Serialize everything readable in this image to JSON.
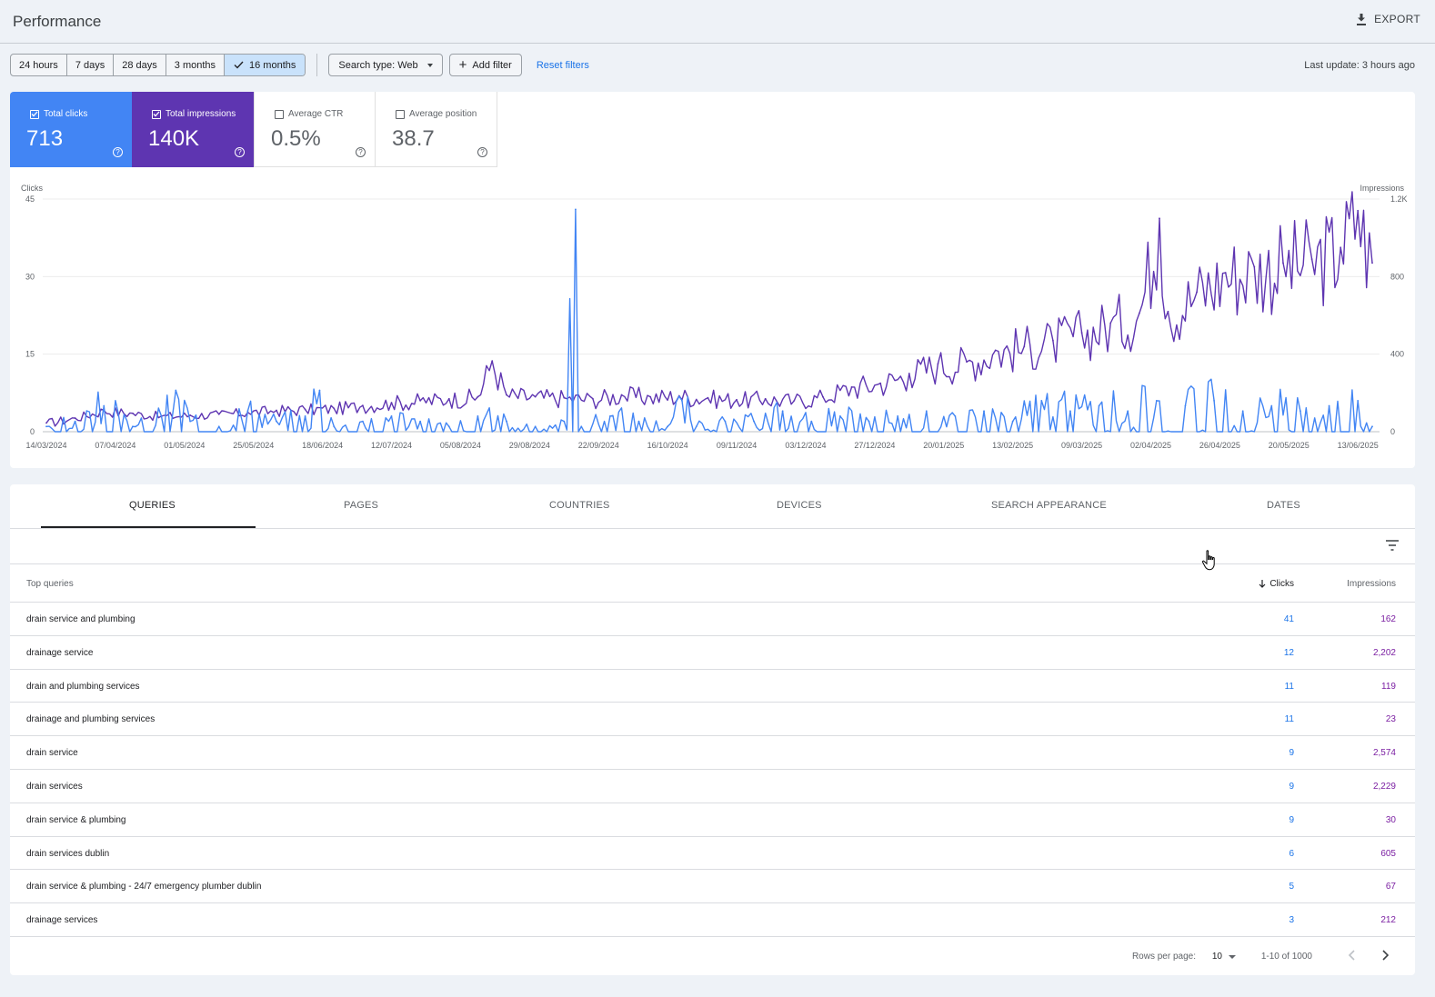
{
  "header": {
    "title": "Performance",
    "export_label": "EXPORT"
  },
  "toolbar": {
    "date_ranges": [
      "24 hours",
      "7 days",
      "28 days",
      "3 months",
      "16 months"
    ],
    "active_range": "16 months",
    "search_type": "Search type: Web",
    "add_filter": "Add filter",
    "reset_filters": "Reset filters",
    "last_update": "Last update: 3 hours ago"
  },
  "metrics": {
    "clicks": {
      "label": "Total clicks",
      "value": "713",
      "checked": true,
      "color": "#4285f4"
    },
    "impressions": {
      "label": "Total impressions",
      "value": "140K",
      "checked": true,
      "color": "#5e35b1"
    },
    "ctr": {
      "label": "Average CTR",
      "value": "0.5%",
      "checked": false
    },
    "position": {
      "label": "Average position",
      "value": "38.7",
      "checked": false
    }
  },
  "chart_data": {
    "type": "line",
    "y_left_label": "Clicks",
    "y_right_label": "Impressions",
    "y_left_ticks": [
      "45",
      "30",
      "15",
      "0"
    ],
    "y_right_ticks": [
      "1.2K",
      "800",
      "400",
      "0"
    ],
    "y_left_range": [
      0,
      45
    ],
    "y_right_range": [
      0,
      1200
    ],
    "x_ticks": [
      "14/03/2024",
      "07/04/2024",
      "01/05/2024",
      "25/05/2024",
      "18/06/2024",
      "12/07/2024",
      "05/08/2024",
      "29/08/2024",
      "22/09/2024",
      "16/10/2024",
      "09/11/2024",
      "03/12/2024",
      "27/12/2024",
      "20/01/2025",
      "13/02/2025",
      "09/03/2025",
      "02/04/2025",
      "26/04/2025",
      "20/05/2025",
      "13/06/2025"
    ],
    "x_range": [
      "14/03/2024",
      "18/06/2025"
    ],
    "grid": true,
    "series": [
      {
        "name": "Clicks",
        "axis": "left",
        "color": "#4285f4",
        "points": [
          [
            "14/03/2024",
            1
          ],
          [
            "24/03/2024",
            2
          ],
          [
            "03/04/2024",
            5
          ],
          [
            "13/04/2024",
            1
          ],
          [
            "23/04/2024",
            3
          ],
          [
            "28/04/2024",
            8
          ],
          [
            "03/05/2024",
            2
          ],
          [
            "13/05/2024",
            1
          ],
          [
            "23/05/2024",
            4
          ],
          [
            "02/06/2024",
            2
          ],
          [
            "12/06/2024",
            3
          ],
          [
            "17/06/2024",
            8
          ],
          [
            "22/06/2024",
            1
          ],
          [
            "02/07/2024",
            2
          ],
          [
            "12/07/2024",
            3
          ],
          [
            "22/07/2024",
            2
          ],
          [
            "01/08/2024",
            1
          ],
          [
            "11/08/2024",
            3
          ],
          [
            "21/08/2024",
            2
          ],
          [
            "31/08/2024",
            1
          ],
          [
            "10/09/2024",
            2
          ],
          [
            "14/09/2024",
            43
          ],
          [
            "16/09/2024",
            1
          ],
          [
            "26/09/2024",
            3
          ],
          [
            "06/10/2024",
            2
          ],
          [
            "16/10/2024",
            1
          ],
          [
            "21/10/2024",
            6
          ],
          [
            "26/10/2024",
            1
          ],
          [
            "05/11/2024",
            2
          ],
          [
            "15/11/2024",
            2
          ],
          [
            "25/11/2024",
            4
          ],
          [
            "05/12/2024",
            2
          ],
          [
            "15/12/2024",
            3
          ],
          [
            "25/12/2024",
            2
          ],
          [
            "04/01/2025",
            3
          ],
          [
            "14/01/2025",
            4
          ],
          [
            "24/01/2025",
            3
          ],
          [
            "03/02/2025",
            4
          ],
          [
            "13/02/2025",
            2
          ],
          [
            "23/02/2025",
            6
          ],
          [
            "05/03/2025",
            4
          ],
          [
            "15/03/2025",
            5
          ],
          [
            "25/03/2025",
            4
          ],
          [
            "04/04/2025",
            6
          ],
          [
            "14/04/2025",
            5
          ],
          [
            "24/04/2025",
            6
          ],
          [
            "04/05/2025",
            4
          ],
          [
            "14/05/2025",
            5
          ],
          [
            "24/05/2025",
            4
          ],
          [
            "03/06/2025",
            5
          ],
          [
            "13/06/2025",
            6
          ],
          [
            "18/06/2025",
            1
          ]
        ]
      },
      {
        "name": "Impressions",
        "axis": "right",
        "color": "#5e35b1",
        "points": [
          [
            "14/03/2024",
            45
          ],
          [
            "24/03/2024",
            70
          ],
          [
            "03/04/2024",
            110
          ],
          [
            "13/04/2024",
            95
          ],
          [
            "23/04/2024",
            80
          ],
          [
            "03/05/2024",
            85
          ],
          [
            "13/05/2024",
            90
          ],
          [
            "23/05/2024",
            100
          ],
          [
            "02/06/2024",
            110
          ],
          [
            "12/06/2024",
            115
          ],
          [
            "22/06/2024",
            120
          ],
          [
            "02/07/2024",
            135
          ],
          [
            "12/07/2024",
            150
          ],
          [
            "22/07/2024",
            160
          ],
          [
            "01/08/2024",
            170
          ],
          [
            "11/08/2024",
            180
          ],
          [
            "16/08/2024",
            365
          ],
          [
            "21/08/2024",
            190
          ],
          [
            "31/08/2024",
            180
          ],
          [
            "10/09/2024",
            175
          ],
          [
            "20/09/2024",
            170
          ],
          [
            "30/09/2024",
            190
          ],
          [
            "10/10/2024",
            180
          ],
          [
            "20/10/2024",
            185
          ],
          [
            "30/10/2024",
            175
          ],
          [
            "09/11/2024",
            165
          ],
          [
            "19/11/2024",
            170
          ],
          [
            "29/11/2024",
            160
          ],
          [
            "09/12/2024",
            180
          ],
          [
            "19/12/2024",
            230
          ],
          [
            "29/12/2024",
            250
          ],
          [
            "08/01/2025",
            300
          ],
          [
            "18/01/2025",
            350
          ],
          [
            "28/01/2025",
            360
          ],
          [
            "07/02/2025",
            420
          ],
          [
            "17/02/2025",
            440
          ],
          [
            "27/02/2025",
            470
          ],
          [
            "09/03/2025",
            510
          ],
          [
            "19/03/2025",
            560
          ],
          [
            "29/03/2025",
            610
          ],
          [
            "05/04/2025",
            1100
          ],
          [
            "08/04/2025",
            620
          ],
          [
            "18/04/2025",
            720
          ],
          [
            "28/04/2025",
            820
          ],
          [
            "08/05/2025",
            850
          ],
          [
            "18/05/2025",
            870
          ],
          [
            "28/05/2025",
            890
          ],
          [
            "07/06/2025",
            950
          ],
          [
            "13/06/2025",
            1140
          ],
          [
            "18/06/2025",
            870
          ]
        ]
      }
    ]
  },
  "tabs": [
    "QUERIES",
    "PAGES",
    "COUNTRIES",
    "DEVICES",
    "SEARCH APPEARANCE",
    "DATES"
  ],
  "active_tab": "QUERIES",
  "table": {
    "columns": {
      "query": "Top queries",
      "clicks": "Clicks",
      "impressions": "Impressions"
    },
    "rows": [
      {
        "query": "drain service and plumbing",
        "clicks": "41",
        "impressions": "162"
      },
      {
        "query": "drainage service",
        "clicks": "12",
        "impressions": "2,202"
      },
      {
        "query": "drain and plumbing services",
        "clicks": "11",
        "impressions": "119"
      },
      {
        "query": "drainage and plumbing services",
        "clicks": "11",
        "impressions": "23"
      },
      {
        "query": "drain service",
        "clicks": "9",
        "impressions": "2,574"
      },
      {
        "query": "drain services",
        "clicks": "9",
        "impressions": "2,229"
      },
      {
        "query": "drain service & plumbing",
        "clicks": "9",
        "impressions": "30"
      },
      {
        "query": "drain services dublin",
        "clicks": "6",
        "impressions": "605"
      },
      {
        "query": "drain service & plumbing - 24/7 emergency plumber dublin",
        "clicks": "5",
        "impressions": "67"
      },
      {
        "query": "drainage services",
        "clicks": "3",
        "impressions": "212"
      }
    ]
  },
  "pagination": {
    "rows_per_page_label": "Rows per page:",
    "rows_per_page": "10",
    "range": "1-10 of 1000"
  }
}
